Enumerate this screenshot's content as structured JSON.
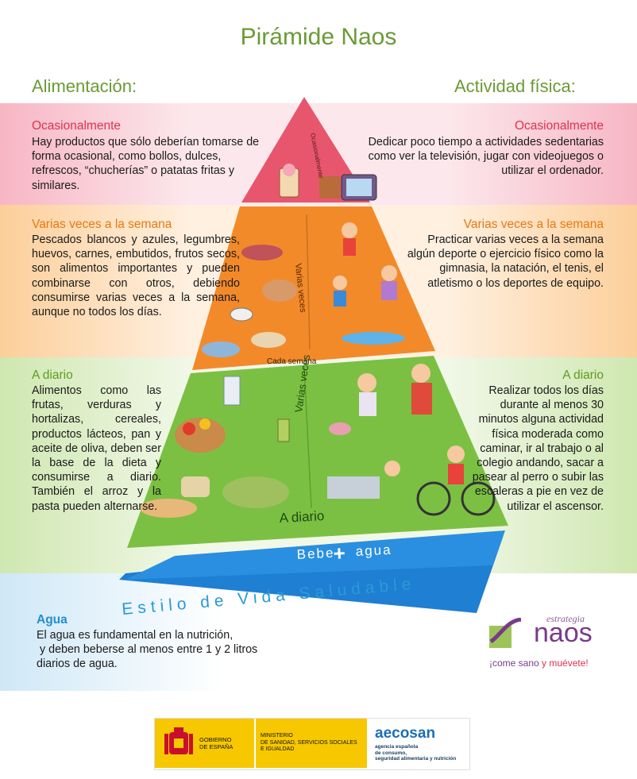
{
  "title": "Pirámide Naos",
  "left_header": "Alimentación:",
  "right_header": "Actividad física:",
  "ocasional": {
    "food_heading": "Ocasionalmente",
    "food_text": "Hay productos que sólo deberían tomarse de forma ocasional, como bollos, dulces, refrescos, “chucherías” o patatas fritas y similares.",
    "activity_heading": "Ocasionalmente",
    "activity_text": "Dedicar poco tiempo a actividades sedentarias como ver la televisión, jugar con videojuegos o utilizar el ordenador.",
    "pyramid_label": "Ocasionalmente"
  },
  "semanal": {
    "food_heading": "Varias veces a la semana",
    "food_text": "Pescados blancos y azules, legumbres, huevos, carnes, embutidos, frutos secos, son alimentos importantes y pueden combinarse con otros, debiendo consumirse varias veces a la semana, aunque no todos los días.",
    "activity_heading": "Varias veces a la semana",
    "activity_text": "Practicar varias veces a la semana algún deporte o ejercicio físico como la gimnasia, la natación, el tenis, el atletismo o los deportes de equipo.",
    "pyramid_label_side": "Varias veces",
    "pyramid_label_bottom": "Cada semana"
  },
  "diario": {
    "food_heading": "A diario",
    "food_text": "Alimentos como las frutas, verduras y hortalizas, cereales, productos lácteos, pan y aceite de oliva, deben ser la base de la dieta y consumirse a diario. También el arroz y la pasta pueden alternarse.",
    "activity_heading": "A diario",
    "activity_text": "Realizar todos los días durante al menos 30 minutos alguna actividad física moderada como caminar, ir al trabajo o al colegio andando, sacar a pasear al perro o subir las escaleras a pie en vez de utilizar el ascensor.",
    "pyramid_label_side": "Varias veces",
    "pyramid_label_bottom": "A diario"
  },
  "base": {
    "water_label_1": "Bebe",
    "water_plus": "+",
    "water_label_2": "agua",
    "lifestyle": "Estilo de Vida Saludable"
  },
  "agua": {
    "heading": "Agua",
    "text_line1": "El agua es fundamental en la nutrición,",
    "text_line2": "y deben beberse al menos entre 1 y 2 litros",
    "text_line3": "diarios de agua."
  },
  "logo_naos": {
    "top": "estrategia",
    "main": "naos",
    "slogan_a": "¡come sano ",
    "slogan_b": "y muévete!"
  },
  "footer": {
    "gobierno_1": "GOBIERNO",
    "gobierno_2": "DE ESPAÑA",
    "ministerio_1": "MINISTERIO",
    "ministerio_2": "DE SANIDAD, SERVICIOS SOCIALES",
    "ministerio_3": "E IGUALDAD",
    "aecosan": "aecosan",
    "aecosan_1": "agencia española",
    "aecosan_2": "de consumo,",
    "aecosan_3": "seguridad alimentaria y nutrición"
  },
  "colors": {
    "pink": "#e0314f",
    "orange": "#e67a12",
    "green": "#5d9c1f",
    "blue": "#1f8fd0",
    "title_green": "#6a9a35"
  }
}
